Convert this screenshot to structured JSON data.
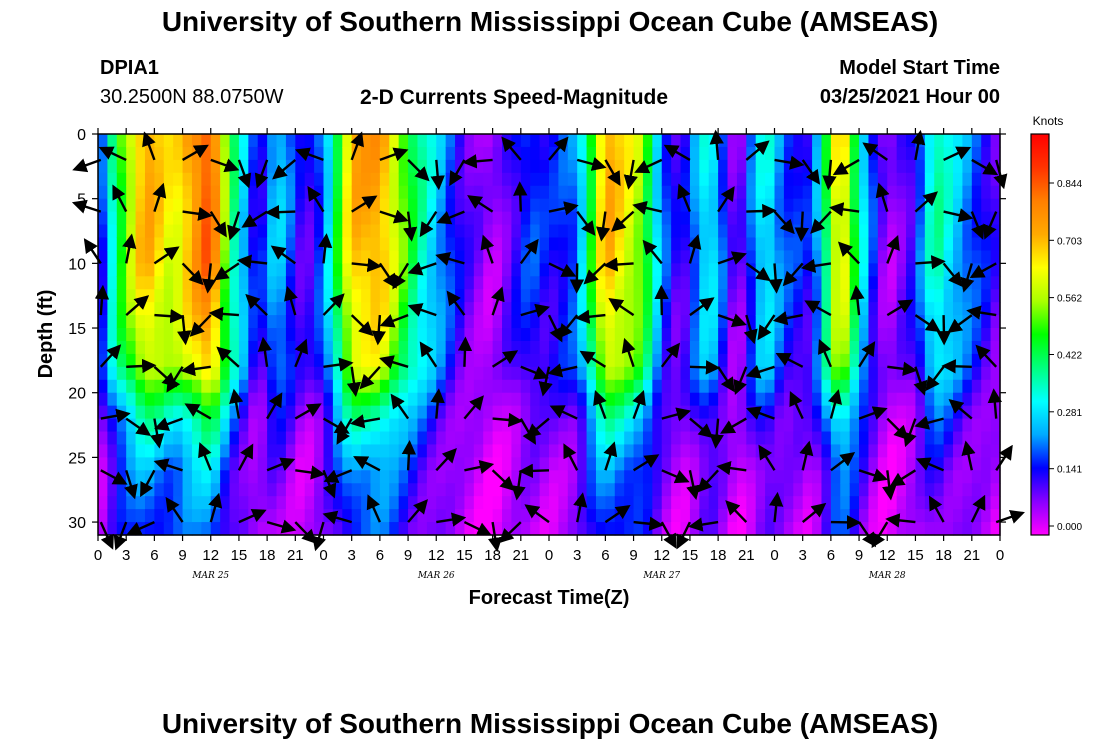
{
  "header": {
    "title_top": "University of Southern Mississippi Ocean Cube (AMSEAS)",
    "title_bottom": "University of Southern Mississippi Ocean Cube (AMSEAS)",
    "station_id": "DPIA1",
    "station_location": "30.2500N  88.0750W",
    "plot_title": "2-D Currents Speed-Magnitude",
    "model_start_label": "Model Start Time",
    "model_start_value": "03/25/2021 Hour 00"
  },
  "chart_data": {
    "type": "heatmap",
    "title": "2-D Currents Speed-Magnitude",
    "xlabel": "Forecast Time(Z)",
    "ylabel": "Depth (ft)",
    "x_tick_labels": [
      "0",
      "3",
      "6",
      "9",
      "12",
      "15",
      "18",
      "21",
      "0",
      "3",
      "6",
      "9",
      "12",
      "15",
      "18",
      "21",
      "0",
      "3",
      "6",
      "9",
      "12",
      "15",
      "18",
      "21",
      "0",
      "3",
      "6",
      "9",
      "12",
      "15",
      "18",
      "21",
      "0"
    ],
    "x_hours": [
      0,
      3,
      6,
      9,
      12,
      15,
      18,
      21,
      24,
      27,
      30,
      33,
      36,
      39,
      42,
      45,
      48,
      51,
      54,
      57,
      60,
      63,
      66,
      69,
      72,
      75,
      78,
      81,
      84,
      87,
      90,
      93,
      96
    ],
    "date_labels": [
      {
        "text": "MAR 25",
        "hour": 12
      },
      {
        "text": "MAR 26",
        "hour": 36
      },
      {
        "text": "MAR 27",
        "hour": 60
      },
      {
        "text": "MAR 28",
        "hour": 84
      }
    ],
    "xlim": [
      0,
      96
    ],
    "y_ticks": [
      0,
      5,
      10,
      15,
      20,
      25,
      30
    ],
    "ylim": [
      0,
      31
    ],
    "y_inverted": true,
    "colorbar": {
      "unit_label": "Knots",
      "tick_values": [
        0.0,
        0.141,
        0.281,
        0.422,
        0.562,
        0.703,
        0.844
      ],
      "tick_labels": [
        "0.000",
        "0.141",
        "0.281",
        "0.422",
        "0.562",
        "0.703",
        "0.844"
      ],
      "range": [
        0,
        0.95
      ],
      "colors": [
        "#ff00ff",
        "#8a00ff",
        "#0000ff",
        "#00aaff",
        "#00ffff",
        "#00ff7f",
        "#00ff00",
        "#aaff00",
        "#ffff00",
        "#ffaa00",
        "#ff7f00",
        "#ff3300",
        "#ff0000"
      ]
    },
    "time_profile": [
      {
        "h": 0,
        "s": 0.1
      },
      {
        "h": 2,
        "s": 0.45
      },
      {
        "h": 5,
        "s": 0.75
      },
      {
        "h": 8,
        "s": 0.62
      },
      {
        "h": 12,
        "s": 0.88
      },
      {
        "h": 14,
        "s": 0.45
      },
      {
        "h": 17,
        "s": 0.12
      },
      {
        "h": 19,
        "s": 0.3
      },
      {
        "h": 22,
        "s": 0.1
      },
      {
        "h": 24,
        "s": 0.22
      },
      {
        "h": 27,
        "s": 0.72
      },
      {
        "h": 30,
        "s": 0.75
      },
      {
        "h": 34,
        "s": 0.4
      },
      {
        "h": 37,
        "s": 0.22
      },
      {
        "h": 39,
        "s": 0.12
      },
      {
        "h": 42,
        "s": 0.05
      },
      {
        "h": 46,
        "s": 0.2
      },
      {
        "h": 48,
        "s": 0.15
      },
      {
        "h": 51,
        "s": 0.22
      },
      {
        "h": 54,
        "s": 0.75
      },
      {
        "h": 58,
        "s": 0.55
      },
      {
        "h": 60,
        "s": 0.22
      },
      {
        "h": 62,
        "s": 0.1
      },
      {
        "h": 65,
        "s": 0.35
      },
      {
        "h": 68,
        "s": 0.05
      },
      {
        "h": 71,
        "s": 0.35
      },
      {
        "h": 73,
        "s": 0.2
      },
      {
        "h": 76,
        "s": 0.15
      },
      {
        "h": 79,
        "s": 0.72
      },
      {
        "h": 82,
        "s": 0.22
      },
      {
        "h": 84,
        "s": 0.05
      },
      {
        "h": 87,
        "s": 0.15
      },
      {
        "h": 89,
        "s": 0.4
      },
      {
        "h": 92,
        "s": 0.25
      },
      {
        "h": 96,
        "s": 0.1
      }
    ],
    "depth_profile": [
      {
        "d": 0,
        "f": 1.0
      },
      {
        "d": 10,
        "f": 0.96
      },
      {
        "d": 18,
        "f": 0.82
      },
      {
        "d": 22,
        "f": 0.5
      },
      {
        "d": 26,
        "f": 0.34
      },
      {
        "d": 31,
        "f": 0.26
      }
    ],
    "arrow_hours": [
      0.3,
      3,
      6,
      9,
      12,
      15,
      18,
      21,
      24,
      27,
      30,
      33,
      36,
      39,
      42,
      45,
      48,
      51,
      54,
      57,
      60,
      63,
      66,
      69,
      72,
      75,
      78,
      81,
      84,
      87,
      90,
      93,
      96
    ],
    "arrow_depths": [
      2,
      6,
      10,
      14,
      18,
      22,
      26,
      30
    ],
    "arrow_directions_deg": [
      160,
      205,
      250,
      330,
      20,
      70,
      110,
      140,
      200,
      290,
      340,
      45,
      85,
      120,
      175,
      230,
      310,
      15,
      60,
      100,
      155,
      210,
      265,
      320,
      10,
      55,
      95,
      150,
      215,
      280,
      335,
      30,
      75
    ]
  },
  "icons": {
    "arrow_glyph": "current-vector-arrow"
  }
}
